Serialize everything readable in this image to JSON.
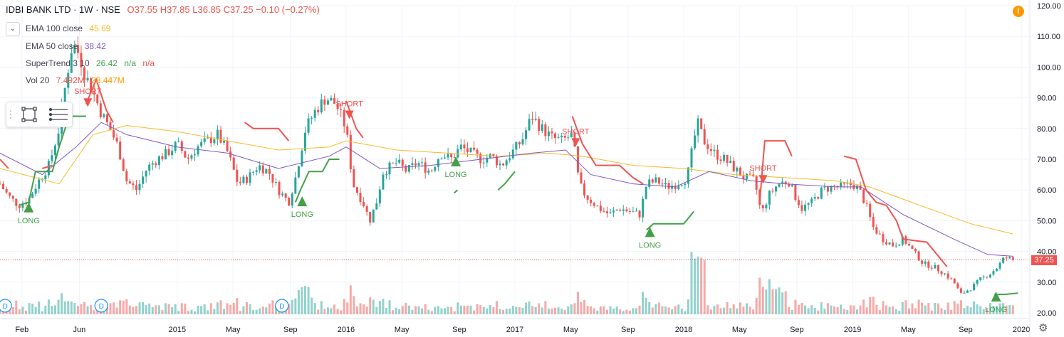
{
  "header": {
    "symbol": "IDBI BANK LTD · 1W · NSE",
    "ohlc": "O37.55 H37.85 L36.85 C37.25 −0.10 (−0.27%)"
  },
  "indicators": [
    {
      "name": "EMA 100 close",
      "values": [
        "45.69"
      ],
      "color": "#f7b924"
    },
    {
      "name": "EMA 50 close",
      "values": [
        "38.42"
      ],
      "color": "#7e57c2"
    },
    {
      "name": "SuperTrend 3 10",
      "values": [
        "26.42",
        "n/a",
        "n/a"
      ],
      "color": "#43a047"
    },
    {
      "name": "Vol 20",
      "values": [
        "7.492M",
        "28.447M"
      ],
      "color": "#ef5350"
    }
  ],
  "current_price_label": "37.25",
  "alert_icon": "!",
  "chart_data": {
    "type": "candlestick",
    "y_axis": {
      "min": 20,
      "max": 120,
      "ticks": [
        "120.00",
        "110.00",
        "100.00",
        "90.00",
        "80.00",
        "70.00",
        "60.00",
        "50.00",
        "40.00",
        "30.00",
        "20.00"
      ]
    },
    "x_ticks": [
      {
        "label": "Feb",
        "t": 2014.08
      },
      {
        "label": "Jun",
        "t": 2014.42
      },
      {
        "label": "2015",
        "t": 2015.0
      },
      {
        "label": "May",
        "t": 2015.33
      },
      {
        "label": "Sep",
        "t": 2015.67
      },
      {
        "label": "2016",
        "t": 2016.0
      },
      {
        "label": "May",
        "t": 2016.33
      },
      {
        "label": "Sep",
        "t": 2016.67
      },
      {
        "label": "2017",
        "t": 2017.0
      },
      {
        "label": "May",
        "t": 2017.33
      },
      {
        "label": "Sep",
        "t": 2017.67
      },
      {
        "label": "2018",
        "t": 2018.0
      },
      {
        "label": "May",
        "t": 2018.33
      },
      {
        "label": "Sep",
        "t": 2018.67
      },
      {
        "label": "2019",
        "t": 2019.0
      },
      {
        "label": "May",
        "t": 2019.33
      },
      {
        "label": "Sep",
        "t": 2019.67
      },
      {
        "label": "2020",
        "t": 2020.0
      }
    ],
    "price_path": [
      [
        2013.95,
        62
      ],
      [
        2014.0,
        58
      ],
      [
        2014.06,
        55
      ],
      [
        2014.12,
        57
      ],
      [
        2014.18,
        63
      ],
      [
        2014.24,
        68
      ],
      [
        2014.3,
        80
      ],
      [
        2014.34,
        95
      ],
      [
        2014.38,
        108
      ],
      [
        2014.42,
        104
      ],
      [
        2014.45,
        98
      ],
      [
        2014.5,
        92
      ],
      [
        2014.55,
        85
      ],
      [
        2014.6,
        80
      ],
      [
        2014.65,
        74
      ],
      [
        2014.7,
        63
      ],
      [
        2014.76,
        60
      ],
      [
        2014.82,
        67
      ],
      [
        2014.88,
        70
      ],
      [
        2014.94,
        72
      ],
      [
        2015.0,
        75
      ],
      [
        2015.06,
        70
      ],
      [
        2015.12,
        74
      ],
      [
        2015.18,
        76
      ],
      [
        2015.24,
        78
      ],
      [
        2015.3,
        72
      ],
      [
        2015.36,
        62
      ],
      [
        2015.42,
        64
      ],
      [
        2015.48,
        68
      ],
      [
        2015.54,
        66
      ],
      [
        2015.6,
        60
      ],
      [
        2015.66,
        56
      ],
      [
        2015.7,
        64
      ],
      [
        2015.76,
        80
      ],
      [
        2015.82,
        86
      ],
      [
        2015.88,
        90
      ],
      [
        2015.94,
        88
      ],
      [
        2016.0,
        80
      ],
      [
        2016.04,
        62
      ],
      [
        2016.1,
        56
      ],
      [
        2016.14,
        50
      ],
      [
        2016.18,
        56
      ],
      [
        2016.22,
        66
      ],
      [
        2016.3,
        69
      ],
      [
        2016.36,
        66
      ],
      [
        2016.42,
        69
      ],
      [
        2016.5,
        66
      ],
      [
        2016.56,
        72
      ],
      [
        2016.62,
        70
      ],
      [
        2016.68,
        74
      ],
      [
        2016.74,
        72
      ],
      [
        2016.8,
        70
      ],
      [
        2016.86,
        71
      ],
      [
        2016.92,
        68
      ],
      [
        2016.98,
        72
      ],
      [
        2017.04,
        76
      ],
      [
        2017.1,
        84
      ],
      [
        2017.16,
        80
      ],
      [
        2017.22,
        77
      ],
      [
        2017.28,
        76
      ],
      [
        2017.34,
        78
      ],
      [
        2017.38,
        62
      ],
      [
        2017.42,
        58
      ],
      [
        2017.5,
        54
      ],
      [
        2017.56,
        52
      ],
      [
        2017.62,
        54
      ],
      [
        2017.68,
        53
      ],
      [
        2017.74,
        52
      ],
      [
        2017.78,
        62
      ],
      [
        2017.84,
        63
      ],
      [
        2017.9,
        61
      ],
      [
        2017.96,
        62
      ],
      [
        2018.02,
        64
      ],
      [
        2018.08,
        82
      ],
      [
        2018.12,
        76
      ],
      [
        2018.18,
        72
      ],
      [
        2018.24,
        70
      ],
      [
        2018.3,
        67
      ],
      [
        2018.36,
        64
      ],
      [
        2018.42,
        63
      ],
      [
        2018.46,
        52
      ],
      [
        2018.5,
        58
      ],
      [
        2018.56,
        62
      ],
      [
        2018.62,
        63
      ],
      [
        2018.66,
        58
      ],
      [
        2018.7,
        54
      ],
      [
        2018.76,
        56
      ],
      [
        2018.82,
        60
      ],
      [
        2018.88,
        61
      ],
      [
        2018.94,
        61
      ],
      [
        2019.0,
        62
      ],
      [
        2019.04,
        60
      ],
      [
        2019.08,
        55
      ],
      [
        2019.12,
        48
      ],
      [
        2019.18,
        44
      ],
      [
        2019.24,
        42
      ],
      [
        2019.3,
        44
      ],
      [
        2019.36,
        40
      ],
      [
        2019.42,
        36
      ],
      [
        2019.48,
        35
      ],
      [
        2019.54,
        33
      ],
      [
        2019.6,
        30
      ],
      [
        2019.64,
        26
      ],
      [
        2019.7,
        28
      ],
      [
        2019.76,
        31
      ],
      [
        2019.82,
        33
      ],
      [
        2019.86,
        35
      ],
      [
        2019.9,
        38
      ],
      [
        2019.95,
        37.25
      ]
    ],
    "ema100_path": [
      [
        2013.95,
        67
      ],
      [
        2014.3,
        62
      ],
      [
        2014.5,
        78
      ],
      [
        2014.7,
        81
      ],
      [
        2015.0,
        79
      ],
      [
        2015.3,
        76
      ],
      [
        2015.6,
        73
      ],
      [
        2015.9,
        74
      ],
      [
        2016.0,
        76
      ],
      [
        2016.3,
        73
      ],
      [
        2016.6,
        72
      ],
      [
        2016.9,
        71
      ],
      [
        2017.2,
        72
      ],
      [
        2017.4,
        71
      ],
      [
        2017.7,
        68
      ],
      [
        2018.0,
        67
      ],
      [
        2018.3,
        65
      ],
      [
        2018.6,
        64
      ],
      [
        2018.9,
        63
      ],
      [
        2019.1,
        61
      ],
      [
        2019.4,
        55
      ],
      [
        2019.7,
        49
      ],
      [
        2019.95,
        45.69
      ]
    ],
    "ema50_path": [
      [
        2013.95,
        72
      ],
      [
        2014.2,
        65
      ],
      [
        2014.4,
        74
      ],
      [
        2014.55,
        82
      ],
      [
        2014.7,
        78
      ],
      [
        2015.0,
        74
      ],
      [
        2015.3,
        72
      ],
      [
        2015.6,
        67
      ],
      [
        2015.9,
        71
      ],
      [
        2016.0,
        74
      ],
      [
        2016.2,
        67
      ],
      [
        2016.5,
        68
      ],
      [
        2016.8,
        70
      ],
      [
        2017.1,
        72
      ],
      [
        2017.3,
        73
      ],
      [
        2017.45,
        65
      ],
      [
        2017.7,
        62
      ],
      [
        2017.95,
        61
      ],
      [
        2018.15,
        66
      ],
      [
        2018.4,
        63
      ],
      [
        2018.6,
        62
      ],
      [
        2018.9,
        61
      ],
      [
        2019.05,
        61
      ],
      [
        2019.3,
        52
      ],
      [
        2019.6,
        44
      ],
      [
        2019.8,
        39
      ],
      [
        2019.95,
        38.42
      ]
    ],
    "supertrend_up_path": [
      [
        2014.06,
        55
      ],
      [
        2014.12,
        56
      ],
      [
        2014.16,
        66
      ],
      [
        2014.26,
        66
      ],
      [
        2014.3,
        74
      ],
      [
        2014.36,
        84
      ],
      [
        2014.46,
        84
      ],
      [
        2015.7,
        56
      ],
      [
        2015.73,
        60
      ],
      [
        2015.78,
        66
      ],
      [
        2015.86,
        66
      ],
      [
        2015.9,
        70
      ],
      [
        2015.96,
        70
      ],
      [
        2016.64,
        59
      ],
      [
        2016.66,
        60
      ],
      [
        2016.9,
        60
      ],
      [
        2016.94,
        62
      ],
      [
        2017.0,
        66
      ],
      [
        2017.3,
        66
      ],
      [
        2017.78,
        47
      ],
      [
        2017.82,
        49
      ],
      [
        2018.0,
        49
      ],
      [
        2018.06,
        53
      ],
      [
        2018.44,
        53
      ],
      [
        2019.84,
        26
      ],
      [
        2019.9,
        26
      ],
      [
        2019.98,
        26.42
      ]
    ],
    "supertrend_down_path": [
      [
        2013.95,
        70
      ],
      [
        2014.0,
        67
      ],
      [
        2014.2,
        67
      ],
      [
        2014.26,
        68
      ],
      [
        2014.46,
        88
      ],
      [
        2014.52,
        96
      ],
      [
        2014.58,
        86
      ],
      [
        2014.62,
        82
      ],
      [
        2015.4,
        82
      ],
      [
        2015.45,
        80
      ],
      [
        2015.6,
        80
      ],
      [
        2015.66,
        76
      ],
      [
        2016.0,
        89
      ],
      [
        2016.06,
        80
      ],
      [
        2016.1,
        77
      ],
      [
        2016.66,
        77
      ],
      [
        2017.34,
        84
      ],
      [
        2017.4,
        75
      ],
      [
        2017.48,
        68
      ],
      [
        2017.62,
        68
      ],
      [
        2017.7,
        64
      ],
      [
        2017.76,
        62
      ],
      [
        2018.45,
        56
      ],
      [
        2018.48,
        76
      ],
      [
        2018.6,
        76
      ],
      [
        2018.64,
        71
      ],
      [
        2018.95,
        71
      ],
      [
        2019.02,
        70
      ],
      [
        2019.08,
        60
      ],
      [
        2019.14,
        56
      ],
      [
        2019.2,
        55
      ],
      [
        2019.26,
        50
      ],
      [
        2019.3,
        44
      ],
      [
        2019.44,
        43
      ],
      [
        2019.56,
        35
      ],
      [
        2019.76,
        35
      ]
    ],
    "signals": [
      {
        "label": "LONG",
        "type": "long",
        "t": 2014.12,
        "price": 55
      },
      {
        "label": "SHORT",
        "type": "short",
        "t": 2014.47,
        "price": 88
      },
      {
        "label": "LONG",
        "type": "long",
        "t": 2015.74,
        "price": 57
      },
      {
        "label": "SHORT",
        "type": "short",
        "t": 2016.02,
        "price": 84
      },
      {
        "label": "LONG",
        "type": "long",
        "t": 2016.65,
        "price": 70
      },
      {
        "label": "SHORT",
        "type": "short",
        "t": 2017.36,
        "price": 75
      },
      {
        "label": "LONG",
        "type": "long",
        "t": 2017.8,
        "price": 47
      },
      {
        "label": "SHORT",
        "type": "short",
        "t": 2018.47,
        "price": 63
      },
      {
        "label": "LONG",
        "type": "long",
        "t": 2019.85,
        "price": 26
      }
    ],
    "dividend_markers": [
      {
        "label": "D",
        "t": 2013.98
      },
      {
        "label": "D",
        "t": 2014.55
      },
      {
        "label": "D",
        "t": 2015.62
      }
    ],
    "current_price": 37.25,
    "volume": {
      "max": 44,
      "base": 20
    }
  }
}
